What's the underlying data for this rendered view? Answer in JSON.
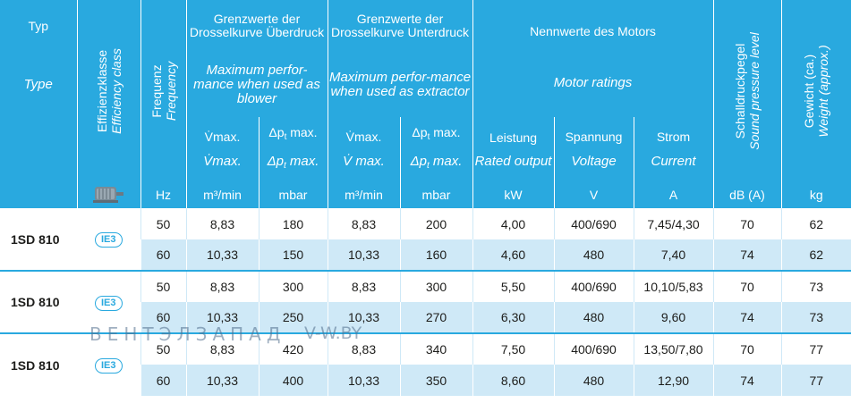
{
  "header": {
    "typ_de": "Typ",
    "typ_en": "Type",
    "effizienz_de": "Effizienzklasse",
    "effizienz_en": "Efficiency class",
    "frequenz_de": "Frequenz",
    "frequenz_en": "Frequency",
    "ueberdruck_de": "Grenzwerte der Drosselkurve Überdruck",
    "ueberdruck_en": "Maximum perfor-mance when used as blower",
    "unterdruck_de": "Grenzwerte der Drosselkurve Unterdruck",
    "unterdruck_en": "Maximum perfor-mance when used as extractor",
    "motor_de": "Nennwerte des Motors",
    "motor_en": "Motor ratings",
    "vmax_de": "V̇max.",
    "vmax_en": "V̇max.",
    "vmax_en2": "V̇ max.",
    "dpt_de": "Δp",
    "dpt_sub": "t",
    "dpt_suffix": " max.",
    "leistung_de": "Leistung",
    "leistung_en": "Rated output",
    "spannung_de": "Spannung",
    "spannung_en": "Voltage",
    "strom_de": "Strom",
    "strom_en": "Current",
    "schall_de": "Schalldruckpegel",
    "schall_en": "Sound pressure level",
    "gewicht_de": "Gewicht (ca.)",
    "gewicht_en": "Weight (approx.)"
  },
  "units": [
    "Hz",
    "m³/min",
    "mbar",
    "m³/min",
    "mbar",
    "kW",
    "V",
    "A",
    "dB (A)",
    "kg"
  ],
  "groups": [
    {
      "type": "1SD 810",
      "ie": "IE3",
      "rows": [
        [
          "50",
          "8,83",
          "180",
          "8,83",
          "200",
          "4,00",
          "400/690",
          "7,45/4,30",
          "70",
          "62"
        ],
        [
          "60",
          "10,33",
          "150",
          "10,33",
          "160",
          "4,60",
          "480",
          "7,40",
          "74",
          "62"
        ]
      ]
    },
    {
      "type": "1SD 810",
      "ie": "IE3",
      "rows": [
        [
          "50",
          "8,83",
          "300",
          "8,83",
          "300",
          "5,50",
          "400/690",
          "10,10/5,83",
          "70",
          "73"
        ],
        [
          "60",
          "10,33",
          "250",
          "10,33",
          "270",
          "6,30",
          "480",
          "9,60",
          "74",
          "73"
        ]
      ]
    },
    {
      "type": "1SD 810",
      "ie": "IE3",
      "rows": [
        [
          "50",
          "8,83",
          "420",
          "8,83",
          "340",
          "7,50",
          "400/690",
          "13,50/7,80",
          "70",
          "77"
        ],
        [
          "60",
          "10,33",
          "400",
          "10,33",
          "350",
          "8,60",
          "480",
          "12,90",
          "74",
          "77"
        ]
      ]
    }
  ],
  "watermark": {
    "left": "ВЕНТЭЛЗАПАД",
    "right": "V-W.BY"
  },
  "colors": {
    "header_blue": "#29a9df",
    "row_light_blue": "#cfe9f7"
  }
}
